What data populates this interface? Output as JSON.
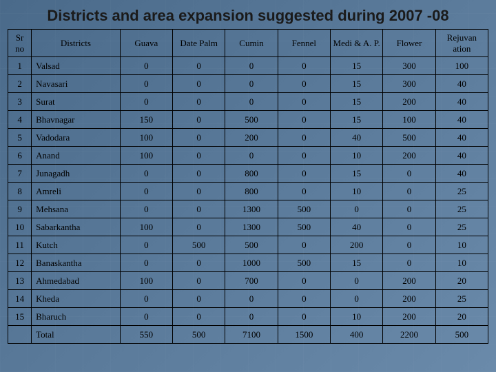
{
  "title": "Districts and area expansion suggested during 2007 -08",
  "columns": [
    "Sr no",
    "Districts",
    "Guava",
    "Date Palm",
    "Cumin",
    "Fennel",
    "Medi & A. P.",
    "Flower",
    "Rejuvan ation"
  ],
  "rows": [
    [
      "1",
      "Valsad",
      "0",
      "0",
      "0",
      "0",
      "15",
      "300",
      "100"
    ],
    [
      "2",
      "Navasari",
      "0",
      "0",
      "0",
      "0",
      "15",
      "300",
      "40"
    ],
    [
      "3",
      "Surat",
      "0",
      "0",
      "0",
      "0",
      "15",
      "200",
      "40"
    ],
    [
      "4",
      "Bhavnagar",
      "150",
      "0",
      "500",
      "0",
      "15",
      "100",
      "40"
    ],
    [
      "5",
      "Vadodara",
      "100",
      "0",
      "200",
      "0",
      "40",
      "500",
      "40"
    ],
    [
      "6",
      "Anand",
      "100",
      "0",
      "0",
      "0",
      "10",
      "200",
      "40"
    ],
    [
      "7",
      "Junagadh",
      "0",
      "0",
      "800",
      "0",
      "15",
      "0",
      "40"
    ],
    [
      "8",
      "Amreli",
      "0",
      "0",
      "800",
      "0",
      "10",
      "0",
      "25"
    ],
    [
      "9",
      "Mehsana",
      "0",
      "0",
      "1300",
      "500",
      "0",
      "0",
      "25"
    ],
    [
      "10",
      "Sabarkantha",
      "100",
      "0",
      "1300",
      "500",
      "40",
      "0",
      "25"
    ],
    [
      "11",
      "Kutch",
      "0",
      "500",
      "500",
      "0",
      "200",
      "0",
      "10"
    ],
    [
      "12",
      "Banaskantha",
      "0",
      "0",
      "1000",
      "500",
      "15",
      "0",
      "10"
    ],
    [
      "13",
      "Ahmedabad",
      "100",
      "0",
      "700",
      "0",
      "0",
      "200",
      "20"
    ],
    [
      "14",
      "Kheda",
      "0",
      "0",
      "0",
      "0",
      "0",
      "200",
      "25"
    ],
    [
      "15",
      "Bharuch",
      "0",
      "0",
      "0",
      "0",
      "10",
      "200",
      "20"
    ]
  ],
  "total": [
    "",
    "Total",
    "550",
    "500",
    "7100",
    "1500",
    "400",
    "2200",
    "500"
  ]
}
